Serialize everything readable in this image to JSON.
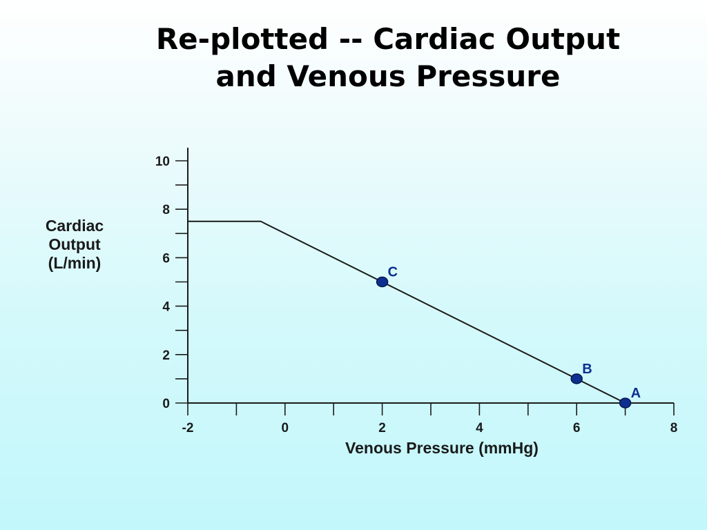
{
  "title_lines": [
    "Re-plotted -- Cardiac Output",
    "and Venous Pressure"
  ],
  "chart_data": {
    "type": "line",
    "title": "Re-plotted -- Cardiac Output and Venous Pressure",
    "xlabel": "Venous Pressure (mmHg)",
    "ylabel_lines": [
      "Cardiac",
      "Output",
      "(L/min)"
    ],
    "xlim": [
      -2,
      8
    ],
    "ylim": [
      0,
      10
    ],
    "x_ticks_major": [
      -2,
      0,
      2,
      4,
      6,
      8
    ],
    "x_ticks_minor": [
      -1,
      1,
      3,
      5,
      7
    ],
    "y_ticks_major": [
      0,
      2,
      4,
      6,
      8,
      10
    ],
    "y_ticks_minor": [
      1,
      3,
      5,
      7,
      9
    ],
    "grid": false,
    "series": [
      {
        "x": [
          -2,
          -0.5,
          7
        ],
        "y": [
          7.5,
          7.5,
          0
        ],
        "color": "#1a1a1a"
      }
    ],
    "points": [
      {
        "label": "C",
        "x": 2,
        "y": 5
      },
      {
        "label": "B",
        "x": 6,
        "y": 1
      },
      {
        "label": "A",
        "x": 7,
        "y": 0
      }
    ],
    "point_color": "#0d2f8f",
    "point_label_color": "#0d2f8f"
  }
}
